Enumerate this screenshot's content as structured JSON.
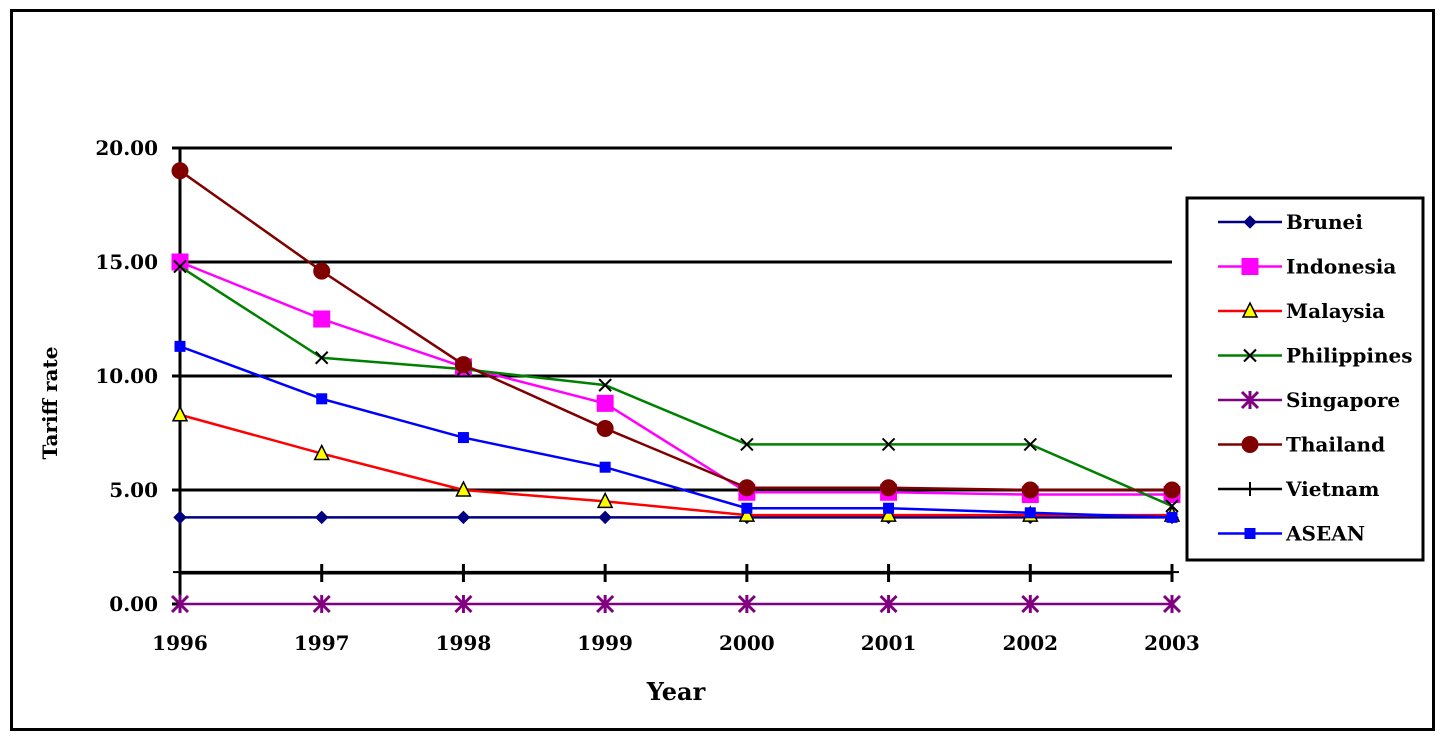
{
  "chart_data": {
    "type": "line",
    "title": "",
    "xlabel": "Year",
    "ylabel": "Tariff rate",
    "categories": [
      "1996",
      "1997",
      "1998",
      "1999",
      "2000",
      "2001",
      "2002",
      "2003"
    ],
    "y_ticks": [
      "0.00",
      "5.00",
      "10.00",
      "15.00",
      "20.00"
    ],
    "ylim": [
      0,
      20
    ],
    "grid": "horizontal",
    "legend_position": "right",
    "series": [
      {
        "name": "Brunei",
        "color": "#000080",
        "marker": "diamond",
        "values": [
          3.8,
          3.8,
          3.8,
          3.8,
          3.8,
          3.8,
          3.8,
          3.8
        ]
      },
      {
        "name": "Indonesia",
        "color": "#ff00ff",
        "marker": "square",
        "values": [
          15.0,
          12.5,
          10.4,
          8.8,
          4.9,
          4.9,
          4.8,
          4.8
        ]
      },
      {
        "name": "Malaysia",
        "color": "#ff0000",
        "marker": "triangle",
        "values": [
          8.3,
          6.6,
          5.0,
          4.5,
          3.9,
          3.9,
          3.9,
          3.9
        ]
      },
      {
        "name": "Philippines",
        "color": "#008000",
        "marker": "x",
        "values": [
          14.8,
          10.8,
          10.3,
          9.6,
          7.0,
          7.0,
          7.0,
          4.3
        ]
      },
      {
        "name": "Singapore",
        "color": "#800080",
        "marker": "asterisk",
        "values": [
          0.0,
          0.0,
          0.0,
          0.0,
          0.0,
          0.0,
          0.0,
          0.0
        ]
      },
      {
        "name": "Thailand",
        "color": "#800000",
        "marker": "circle",
        "values": [
          19.0,
          14.6,
          10.5,
          7.7,
          5.1,
          5.1,
          5.0,
          5.0
        ]
      },
      {
        "name": "Vietnam",
        "color": "#000000",
        "marker": "plus",
        "values": [
          1.4,
          1.4,
          1.4,
          1.4,
          1.4,
          1.4,
          1.4,
          1.4
        ]
      },
      {
        "name": "ASEAN",
        "color": "#0000ff",
        "marker": "square-small",
        "values": [
          11.3,
          9.0,
          7.3,
          6.0,
          4.2,
          4.2,
          4.0,
          3.8
        ]
      }
    ]
  }
}
